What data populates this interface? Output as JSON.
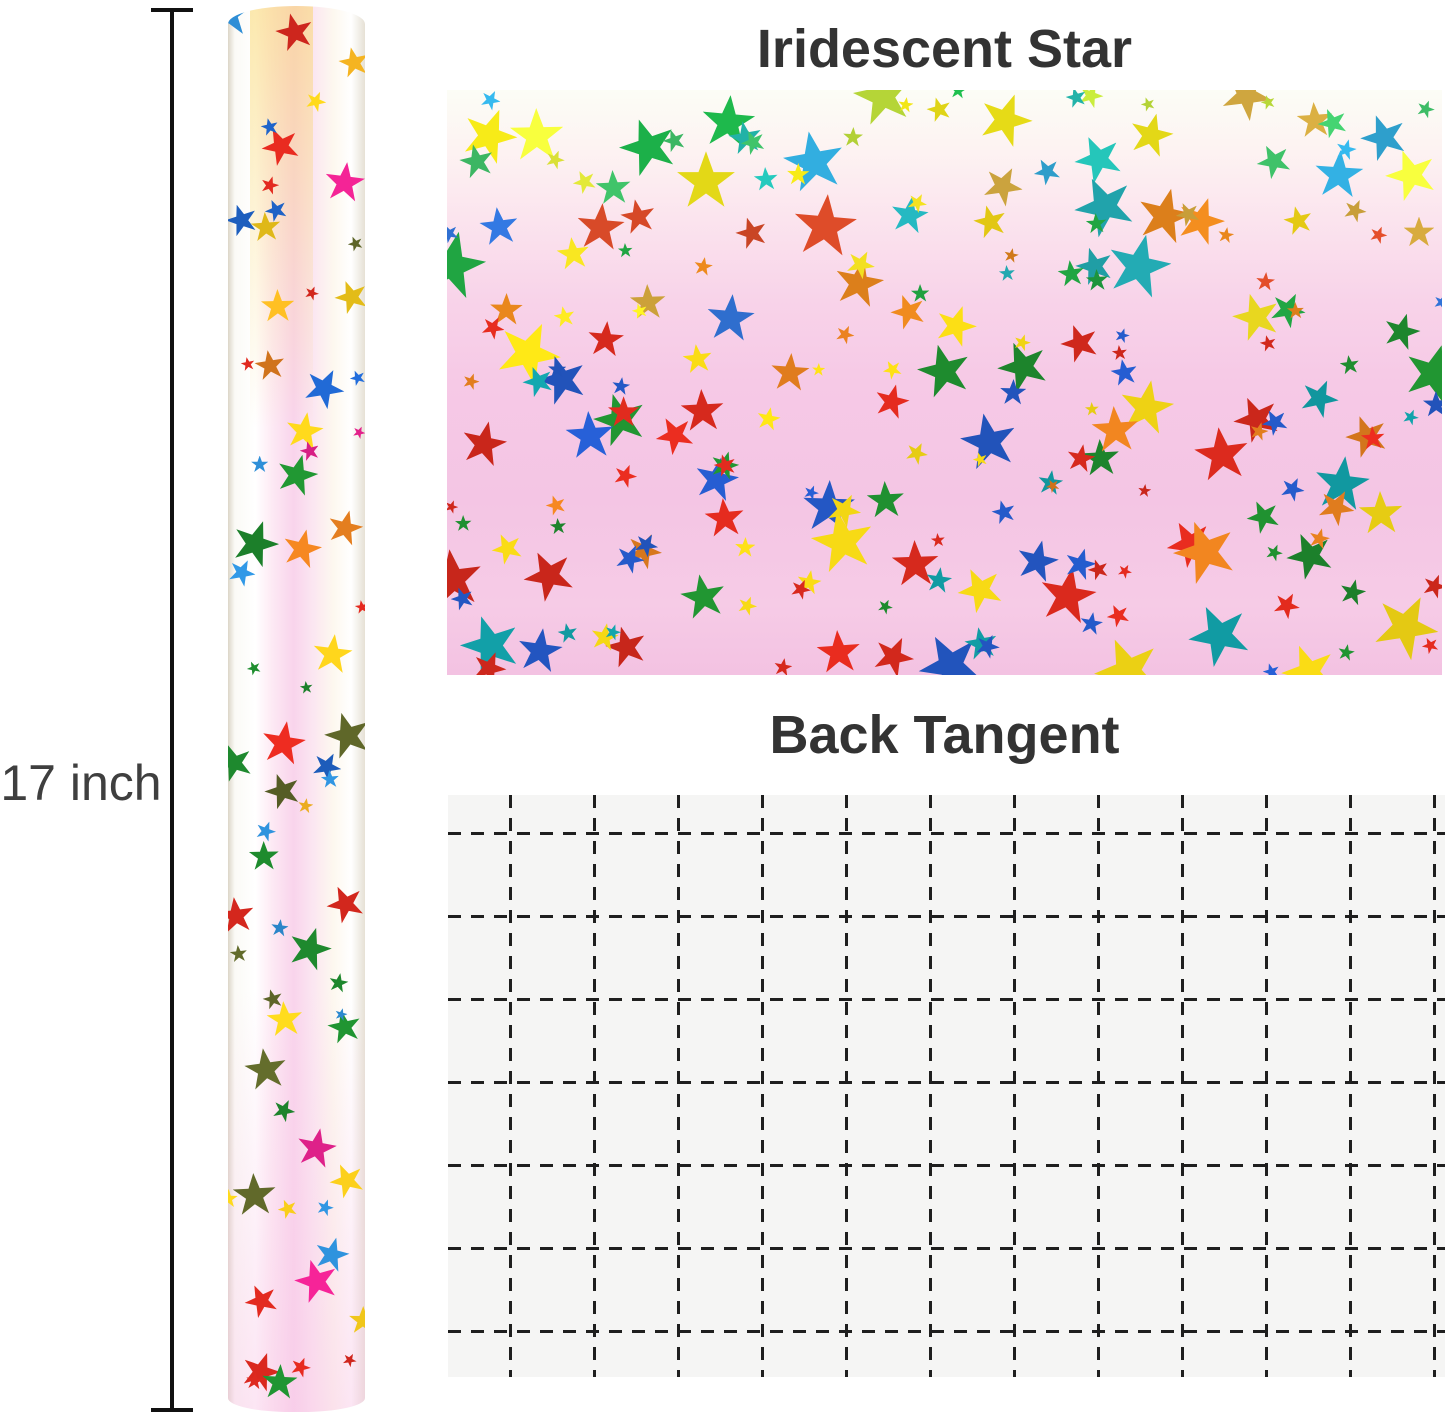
{
  "image": {
    "background": "#ffffff"
  },
  "dimension": {
    "label": "17 inch",
    "line_color": "#111111",
    "text_color": "#3f3f3f"
  },
  "theme": {
    "title_color": "#333333"
  },
  "front": {
    "title": "Iridescent Star"
  },
  "back": {
    "title": "Back Tangent"
  },
  "roll": {
    "seed": 7,
    "zones": [
      {
        "until": 1.01,
        "palette": "roll"
      }
    ],
    "palettes": {
      "roll": [
        "#2e8fd8",
        "#1f63c8",
        "#e0218a",
        "#d8281e",
        "#f2c81a",
        "#f0b020",
        "#5c6428",
        "#1e8a2e",
        "#e07c1e",
        "#2e8fd8",
        "#d8281e",
        "#f2c81a",
        "#1f63c8",
        "#e0218a"
      ]
    },
    "passes": [
      {
        "cols": 3,
        "rows": 13,
        "min": 26,
        "max": 46
      },
      {
        "cols": 3,
        "rows": 10,
        "min": 12,
        "max": 22
      }
    ]
  },
  "swatch": {
    "seed": 11,
    "zones": [
      {
        "until": 0.17,
        "palette": "top"
      },
      {
        "until": 0.4,
        "palette": "mid"
      },
      {
        "until": 1.01,
        "palette": "main"
      }
    ],
    "palettes": {
      "top": [
        "#23b9ae",
        "#1db54b",
        "#40c46a",
        "#e8ee3a",
        "#f2e618",
        "#cfa63f",
        "#31a9d9",
        "#bfe03a"
      ],
      "mid": [
        "#d2a63c",
        "#e0821c",
        "#2f6fd0",
        "#f0d414",
        "#1e9a3e",
        "#22a8b0",
        "#f2e020",
        "#d84a28"
      ],
      "main": [
        "#d8291d",
        "#2458c6",
        "#d8291d",
        "#2458c6",
        "#1e8a2e",
        "#f0d414",
        "#1e8a2e",
        "#f0d414",
        "#d8291d",
        "#2458c6",
        "#e07c1e",
        "#12a0a8"
      ]
    },
    "passes": [
      {
        "cols": 12,
        "rows": 7,
        "min": 34,
        "max": 66
      },
      {
        "cols": 8,
        "rows": 5,
        "min": 24,
        "max": 36
      },
      {
        "cols": 12,
        "rows": 7,
        "min": 13,
        "max": 24
      }
    ]
  },
  "grid": {
    "background": "#f5f5f4",
    "line_color": "#1f1f1f",
    "thickness": 3,
    "dash": 13,
    "gap_len": 10,
    "vertical": {
      "count": 12,
      "start": 61,
      "gap": 84
    },
    "horizontal": {
      "count": 7,
      "start": 37,
      "gap": 83
    }
  }
}
